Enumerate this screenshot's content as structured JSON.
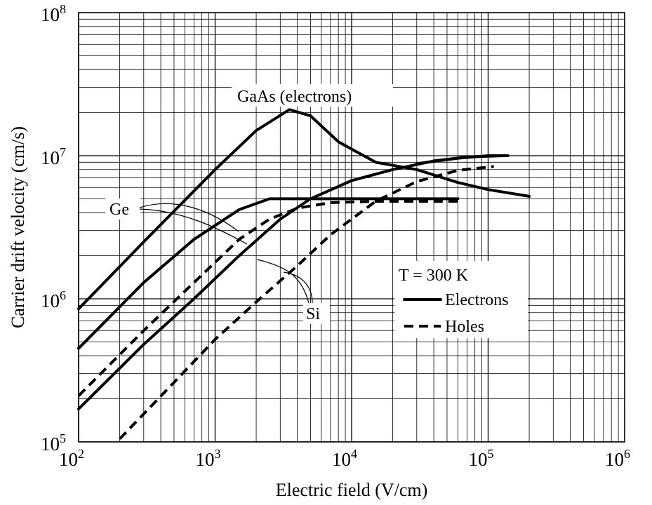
{
  "chart_data": {
    "type": "line",
    "xlabel": "Electric field (V/cm)",
    "ylabel": "Carrier drift velocity (cm/s)",
    "x_scale": "log",
    "y_scale": "log",
    "xlim": [
      100,
      1000000
    ],
    "ylim": [
      100000,
      100000000
    ],
    "grid": true,
    "x_ticks": [
      {
        "base": "10",
        "exp": "2",
        "value": 100
      },
      {
        "base": "10",
        "exp": "3",
        "value": 1000
      },
      {
        "base": "10",
        "exp": "4",
        "value": 10000
      },
      {
        "base": "10",
        "exp": "5",
        "value": 100000
      },
      {
        "base": "10",
        "exp": "6",
        "value": 1000000
      }
    ],
    "y_ticks": [
      {
        "base": "10",
        "exp": "5",
        "value": 100000
      },
      {
        "base": "10",
        "exp": "6",
        "value": 1000000
      },
      {
        "base": "10",
        "exp": "7",
        "value": 10000000
      },
      {
        "base": "10",
        "exp": "8",
        "value": 100000000
      }
    ],
    "series": [
      {
        "material": "GaAs",
        "carrier": "electrons",
        "style": "solid",
        "x": [
          100,
          300,
          1000,
          2000,
          3500,
          5000,
          8000,
          15000,
          30000,
          60000,
          100000,
          200000
        ],
        "y": [
          850000,
          2500000,
          8000000,
          15000000,
          21000000,
          19000000,
          12500000,
          9000000,
          8000000,
          6500000,
          5800000,
          5200000
        ]
      },
      {
        "material": "GaAs",
        "carrier": "electrons",
        "style": "solid",
        "x": [
          30000,
          60000,
          100000,
          140000
        ],
        "y": [
          8800000,
          9600000,
          10000000,
          10000000
        ]
      },
      {
        "material": "Ge",
        "carrier": "electrons",
        "style": "solid",
        "x": [
          100,
          300,
          700,
          1500,
          2500,
          4000,
          7000,
          15000,
          30000,
          60000
        ],
        "y": [
          450000,
          1300000,
          2600000,
          4200000,
          5000000,
          5000000,
          5000000,
          5000000,
          5000000,
          5000000
        ]
      },
      {
        "material": "Ge",
        "carrier": "holes",
        "style": "dashed",
        "x": [
          100,
          300,
          700,
          1500,
          2500,
          4000,
          7000,
          15000,
          30000,
          60000
        ],
        "y": [
          210000,
          600000,
          1300000,
          2600000,
          3600000,
          4300000,
          4700000,
          4800000,
          4800000,
          4800000
        ]
      },
      {
        "material": "Si",
        "carrier": "electrons",
        "style": "solid",
        "x": [
          100,
          300,
          700,
          1500,
          3000,
          5000,
          10000,
          20000,
          40000,
          70000,
          130000
        ],
        "y": [
          170000,
          480000,
          1000000,
          2000000,
          3600000,
          5000000,
          6700000,
          8000000,
          9200000,
          9800000,
          10000000
        ]
      },
      {
        "material": "Si",
        "carrier": "holes",
        "style": "dashed",
        "x": [
          200,
          500,
          1000,
          2000,
          4000,
          7000,
          15000,
          30000,
          60000,
          110000
        ],
        "y": [
          105000,
          260000,
          520000,
          950000,
          1700000,
          2800000,
          4800000,
          6600000,
          7900000,
          8400000
        ]
      }
    ],
    "annotations": {
      "gaas": "GaAs (electrons)",
      "ge": "Ge",
      "si": "Si",
      "temperature": "T = 300 K"
    },
    "legend": {
      "placement": "lower-right",
      "items": [
        {
          "label": "Electrons",
          "style": "solid"
        },
        {
          "label": "Holes",
          "style": "dashed"
        }
      ]
    }
  }
}
